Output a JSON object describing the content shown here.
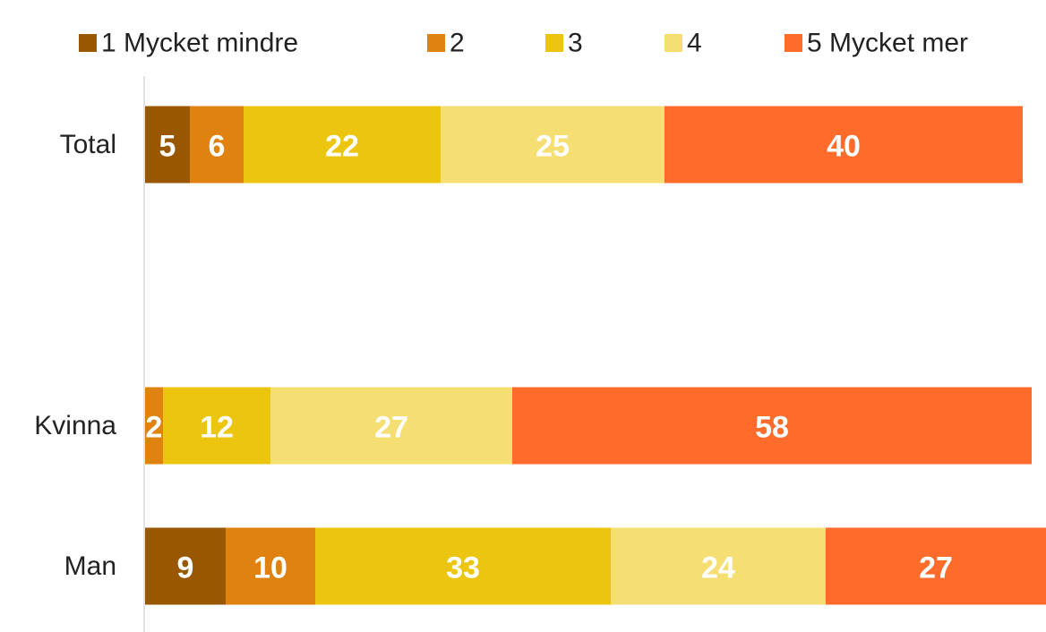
{
  "chart_data": {
    "type": "stacked_barh",
    "categories": [
      "Total",
      null,
      "Kvinna",
      "Man"
    ],
    "series": [
      {
        "name": "1 Mycket mindre",
        "color": "#985700",
        "values": [
          5,
          null,
          null,
          9
        ]
      },
      {
        "name": "2",
        "color": "#e0820f",
        "values": [
          6,
          null,
          2,
          10
        ]
      },
      {
        "name": "3",
        "color": "#ebc50f",
        "values": [
          22,
          null,
          12,
          33
        ]
      },
      {
        "name": "4",
        "color": "#f5de72",
        "values": [
          25,
          null,
          27,
          24
        ]
      },
      {
        "name": "5 Mycket mer",
        "color": "#ff6b2b",
        "values": [
          40,
          null,
          58,
          27
        ]
      }
    ],
    "xlim": [
      0,
      100
    ],
    "legend": "top"
  }
}
